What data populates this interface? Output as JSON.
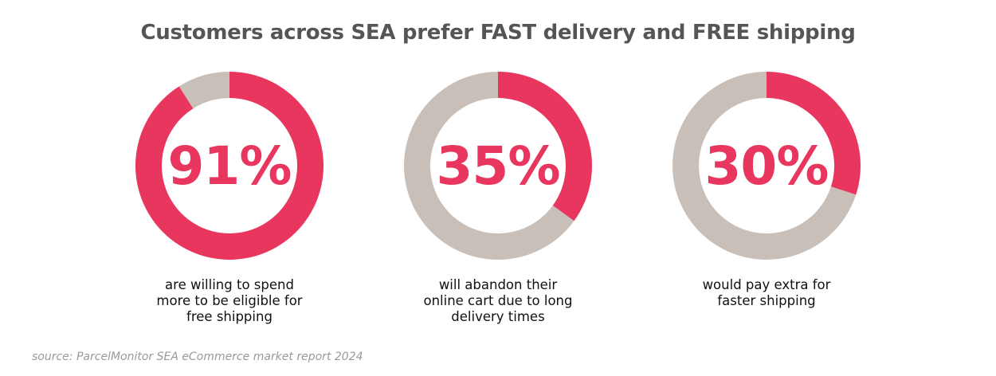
{
  "title": "Customers across SEA prefer FAST delivery and FREE shipping",
  "source": "source: ParcelMonitor SEA eCommerce market report 2024",
  "colors": {
    "accent": "#E8365F",
    "remainder": "#C8BFB8",
    "title": "#555555",
    "source": "#9A9A9A"
  },
  "chart_data": [
    {
      "type": "pie",
      "variant": "donut",
      "title": "",
      "value": 91,
      "remainder": 9,
      "center_label": "91%",
      "caption_lines": [
        "are willing to spend",
        "more to be eligible for",
        "free shipping"
      ]
    },
    {
      "type": "pie",
      "variant": "donut",
      "title": "",
      "value": 35,
      "remainder": 65,
      "center_label": "35%",
      "caption_lines": [
        "will abandon their",
        "online cart due to long",
        "delivery times"
      ]
    },
    {
      "type": "pie",
      "variant": "donut",
      "title": "",
      "value": 30,
      "remainder": 70,
      "center_label": "30%",
      "caption_lines": [
        "would pay extra for",
        "faster shipping"
      ]
    }
  ]
}
